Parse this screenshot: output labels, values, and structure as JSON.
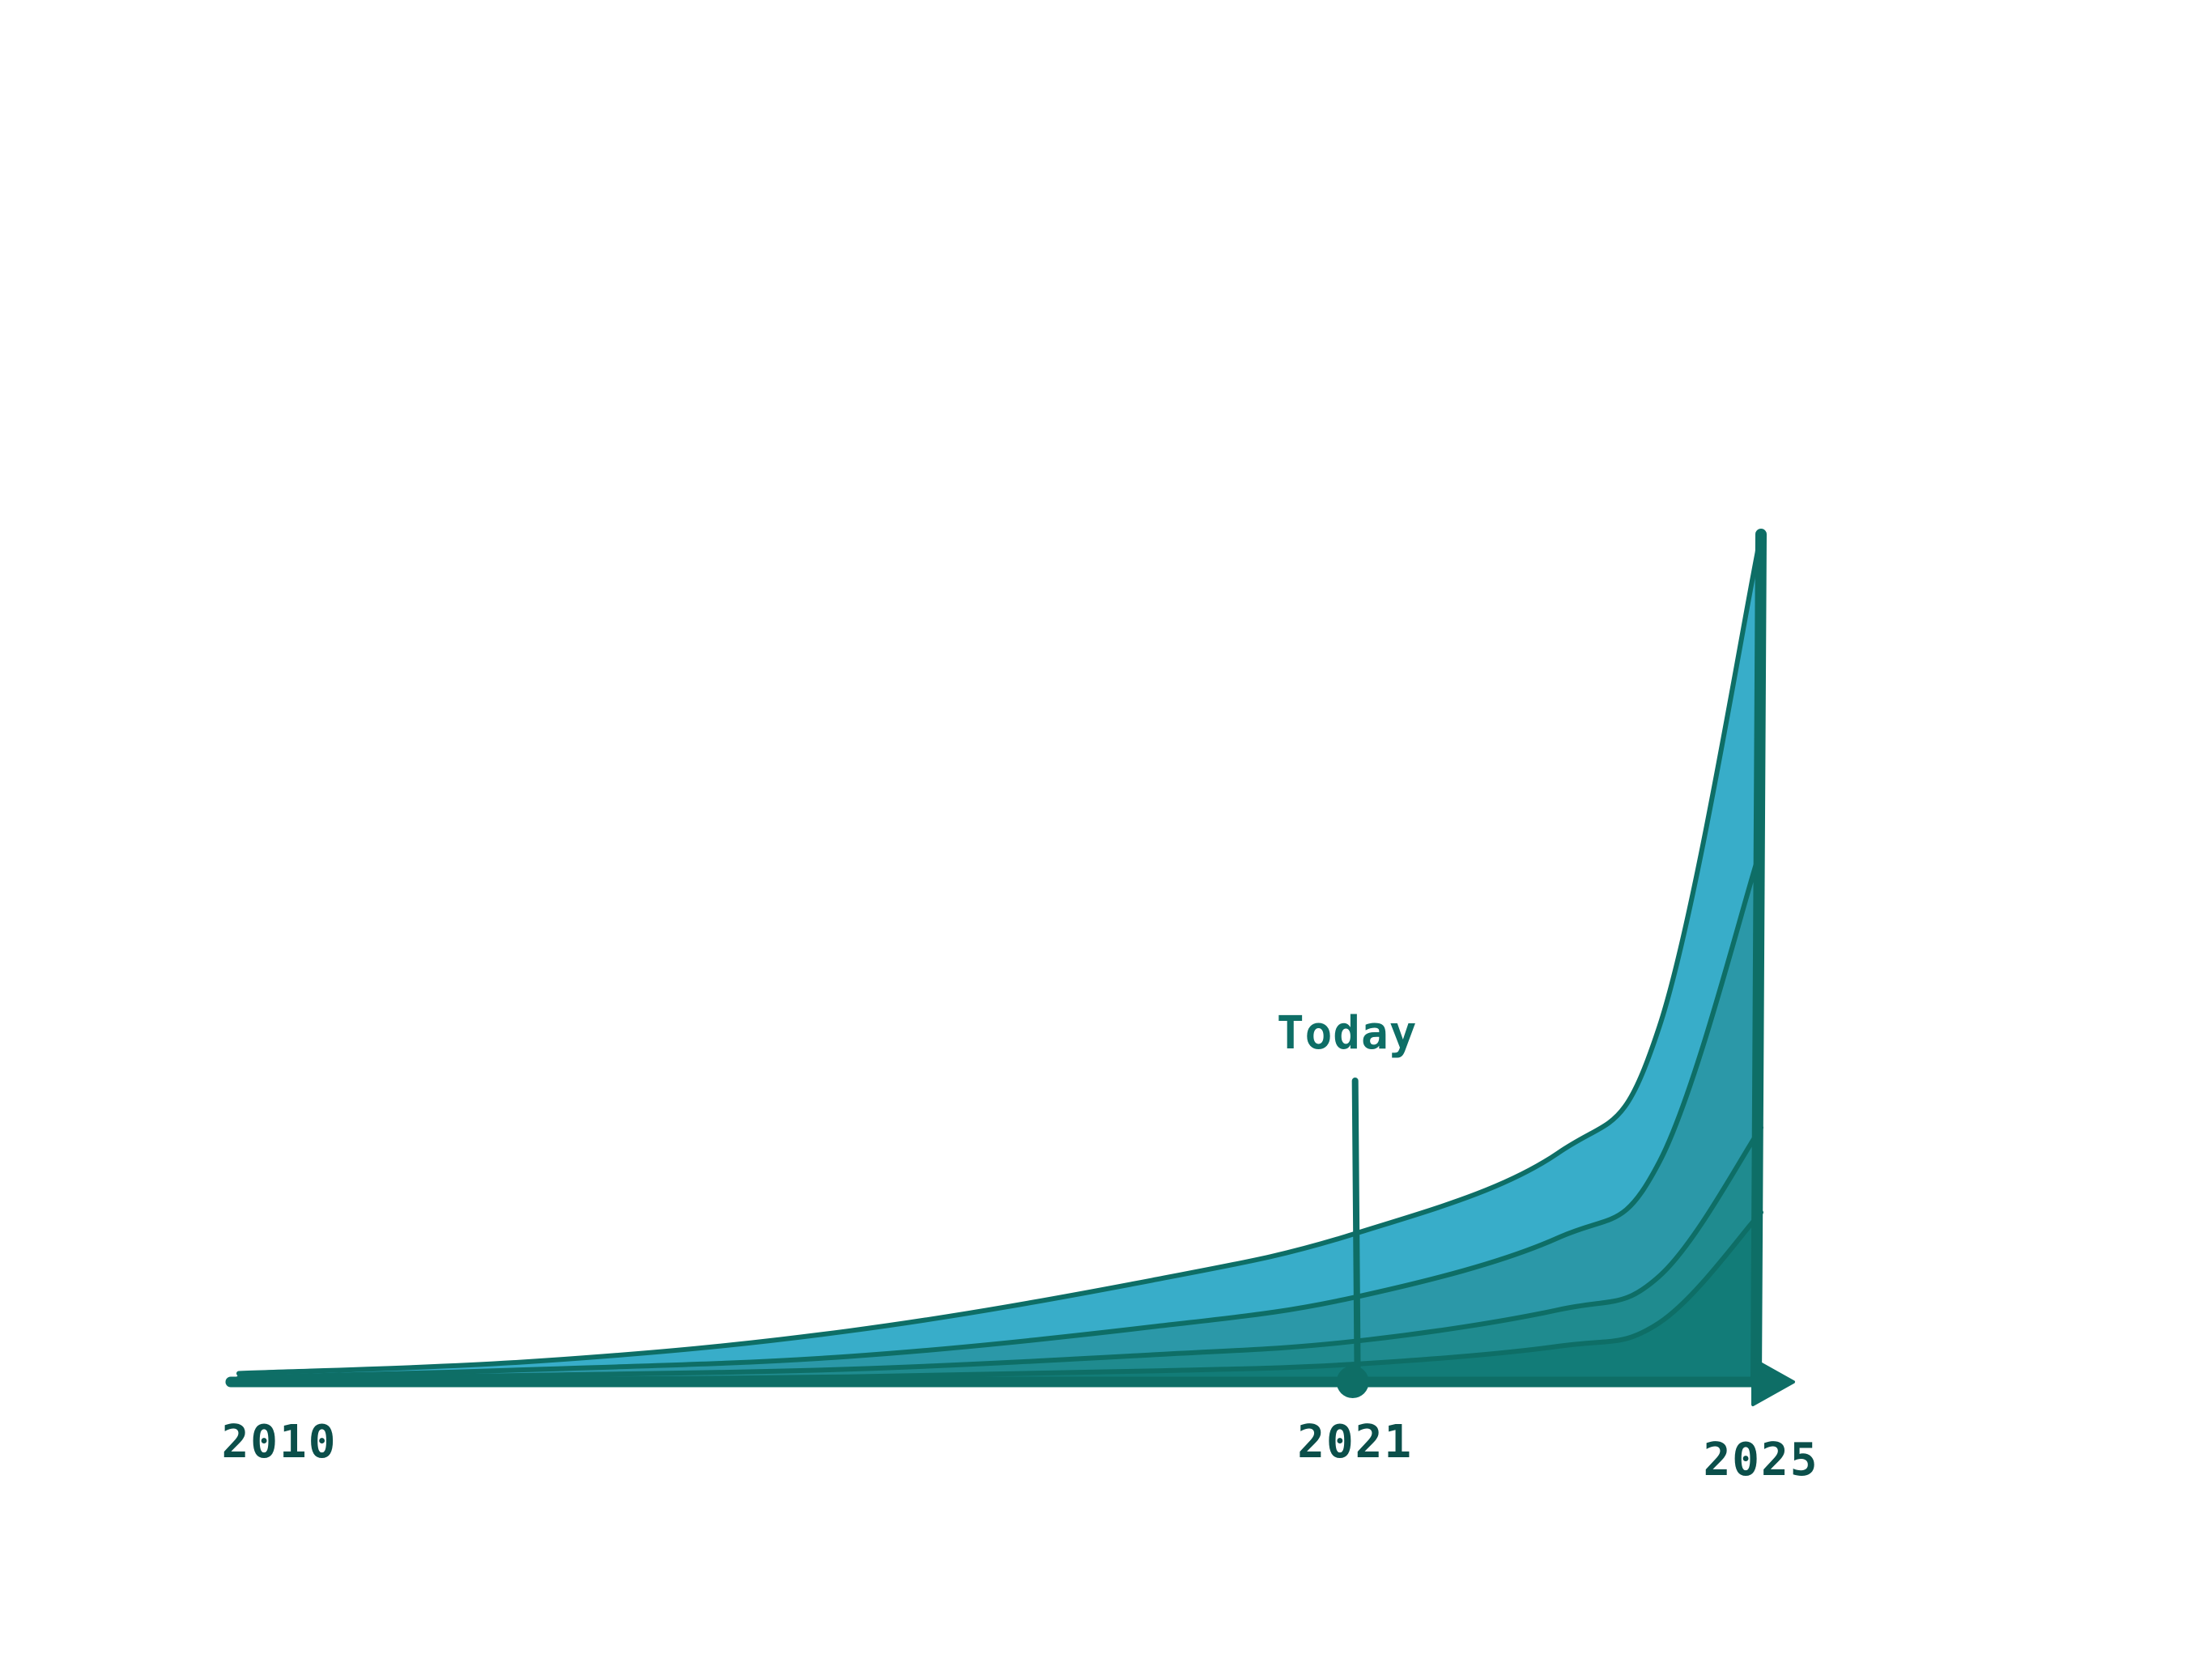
{
  "chart_data": {
    "type": "area",
    "title": "",
    "xlabel": "",
    "ylabel": "",
    "x_axis_ticks": [
      "2010",
      "2021",
      "2025"
    ],
    "xlim": [
      2010,
      2025
    ],
    "ylim": [
      0,
      100
    ],
    "grid": false,
    "legend": "none",
    "stacking": "overlapping areas, innermost darkest",
    "series": [
      {
        "points": [
          [
            2010,
            1
          ],
          [
            2013,
            2.5
          ],
          [
            2016,
            6
          ],
          [
            2019,
            12
          ],
          [
            2021,
            17.5
          ],
          [
            2023,
            27
          ],
          [
            2024,
            42
          ],
          [
            2025,
            100
          ]
        ],
        "color": "#38adc9"
      },
      {
        "points": [
          [
            2010,
            0.5
          ],
          [
            2013,
            1.5
          ],
          [
            2016,
            3
          ],
          [
            2019,
            6.5
          ],
          [
            2021,
            10
          ],
          [
            2023,
            17
          ],
          [
            2024,
            26
          ],
          [
            2025,
            63
          ]
        ],
        "color": "#2b98a8"
      },
      {
        "points": [
          [
            2010,
            0.3
          ],
          [
            2013,
            0.8
          ],
          [
            2016,
            1.5
          ],
          [
            2019,
            3.2
          ],
          [
            2021,
            4.8
          ],
          [
            2023,
            8.5
          ],
          [
            2024,
            12.5
          ],
          [
            2025,
            30
          ]
        ],
        "color": "#1f8b8f"
      },
      {
        "points": [
          [
            2010,
            0.1
          ],
          [
            2013,
            0.3
          ],
          [
            2016,
            0.6
          ],
          [
            2019,
            1.3
          ],
          [
            2021,
            2.1
          ],
          [
            2023,
            4.2
          ],
          [
            2024,
            7
          ],
          [
            2025,
            20
          ]
        ],
        "color": "#127c78"
      }
    ],
    "annotations": [
      {
        "label": "Today",
        "x": 2021
      }
    ],
    "line_color": "#0e6e66"
  }
}
